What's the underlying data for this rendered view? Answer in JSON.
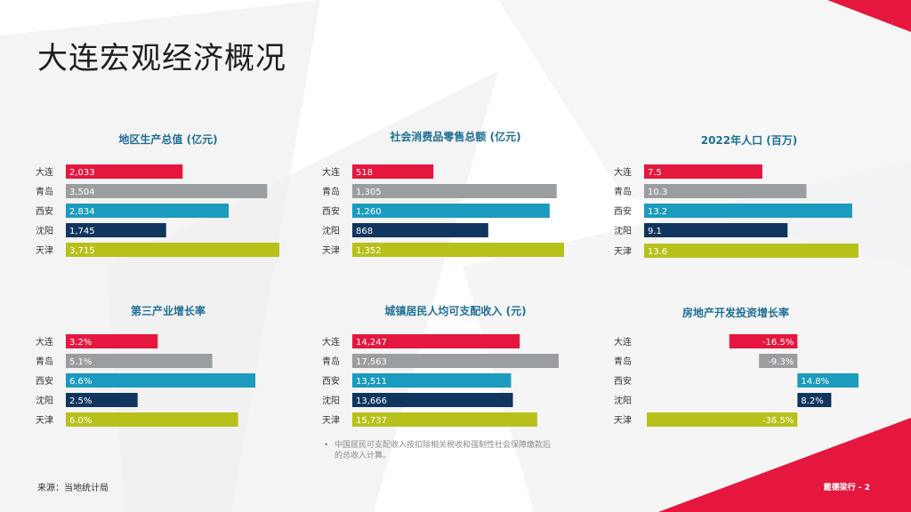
{
  "title": "大连宏观经济概况",
  "footnote": {
    "bullet": "•",
    "text": "中国居民可支配收入按扣除相关税收和强制性社会保障缴款后的总收入计算。"
  },
  "source": "来源：当地统计局",
  "page_label": "戴德梁行 - 2",
  "colors": {
    "dalian": "#e5173f",
    "qingdao": "#9b9ea1",
    "xian": "#1b9bbd",
    "shenyang": "#10355e",
    "tianjin": "#b7c11a",
    "title": "#1f6f96",
    "accent_red": "#e5173f"
  },
  "chart_data": [
    {
      "type": "bar",
      "title": "地区生产总值 (亿元)",
      "categories": [
        "大连",
        "青岛",
        "西安",
        "沈阳",
        "天津"
      ],
      "values": [
        2033,
        3504,
        2834,
        1745,
        3715
      ],
      "labels": [
        "2,033",
        "3,504",
        "2,834",
        "1,745",
        "3,715"
      ],
      "xlim": [
        0,
        3715
      ]
    },
    {
      "type": "bar",
      "title": "社会消费品零售总额 (亿元)",
      "categories": [
        "大连",
        "青岛",
        "西安",
        "沈阳",
        "天津"
      ],
      "values": [
        518,
        1305,
        1260,
        868,
        1352
      ],
      "labels": [
        "518",
        "1,305",
        "1,260",
        "868",
        "1,352"
      ],
      "xlim": [
        0,
        1352
      ]
    },
    {
      "type": "bar",
      "title": "2022年人口 (百万)",
      "categories": [
        "大连",
        "青岛",
        "西安",
        "沈阳",
        "天津"
      ],
      "values": [
        7.5,
        10.3,
        13.2,
        9.1,
        13.6
      ],
      "labels": [
        "7.5",
        "10.3",
        "13.2",
        "9.1",
        "13.6"
      ],
      "xlim": [
        0,
        13.6
      ]
    },
    {
      "type": "bar",
      "title": "第三产业增长率",
      "categories": [
        "大连",
        "青岛",
        "西安",
        "沈阳",
        "天津"
      ],
      "values": [
        3.2,
        5.1,
        6.6,
        2.5,
        6.0
      ],
      "labels": [
        "3.2%",
        "5.1%",
        "6.6%",
        "2.5%",
        "6.0%"
      ],
      "xlim": [
        0,
        6.6
      ]
    },
    {
      "type": "bar",
      "title": "城镇居民人均可支配收入 (元)",
      "categories": [
        "大连",
        "青岛",
        "西安",
        "沈阳",
        "天津"
      ],
      "values": [
        14247,
        17563,
        13511,
        13666,
        15737
      ],
      "labels": [
        "14,247",
        "17,563",
        "13,511",
        "13,666",
        "15,737"
      ],
      "xlim": [
        0,
        17563
      ]
    },
    {
      "type": "bar",
      "title": "房地产开发投资增长率",
      "categories": [
        "大连",
        "青岛",
        "西安",
        "沈阳",
        "天津"
      ],
      "values": [
        -16.5,
        -9.3,
        14.8,
        8.2,
        -36.5
      ],
      "labels": [
        "-16.5%",
        "-9.3%",
        "14.8%",
        "8.2%",
        "-36.5%"
      ],
      "xlim": [
        -36.5,
        14.8
      ]
    }
  ]
}
